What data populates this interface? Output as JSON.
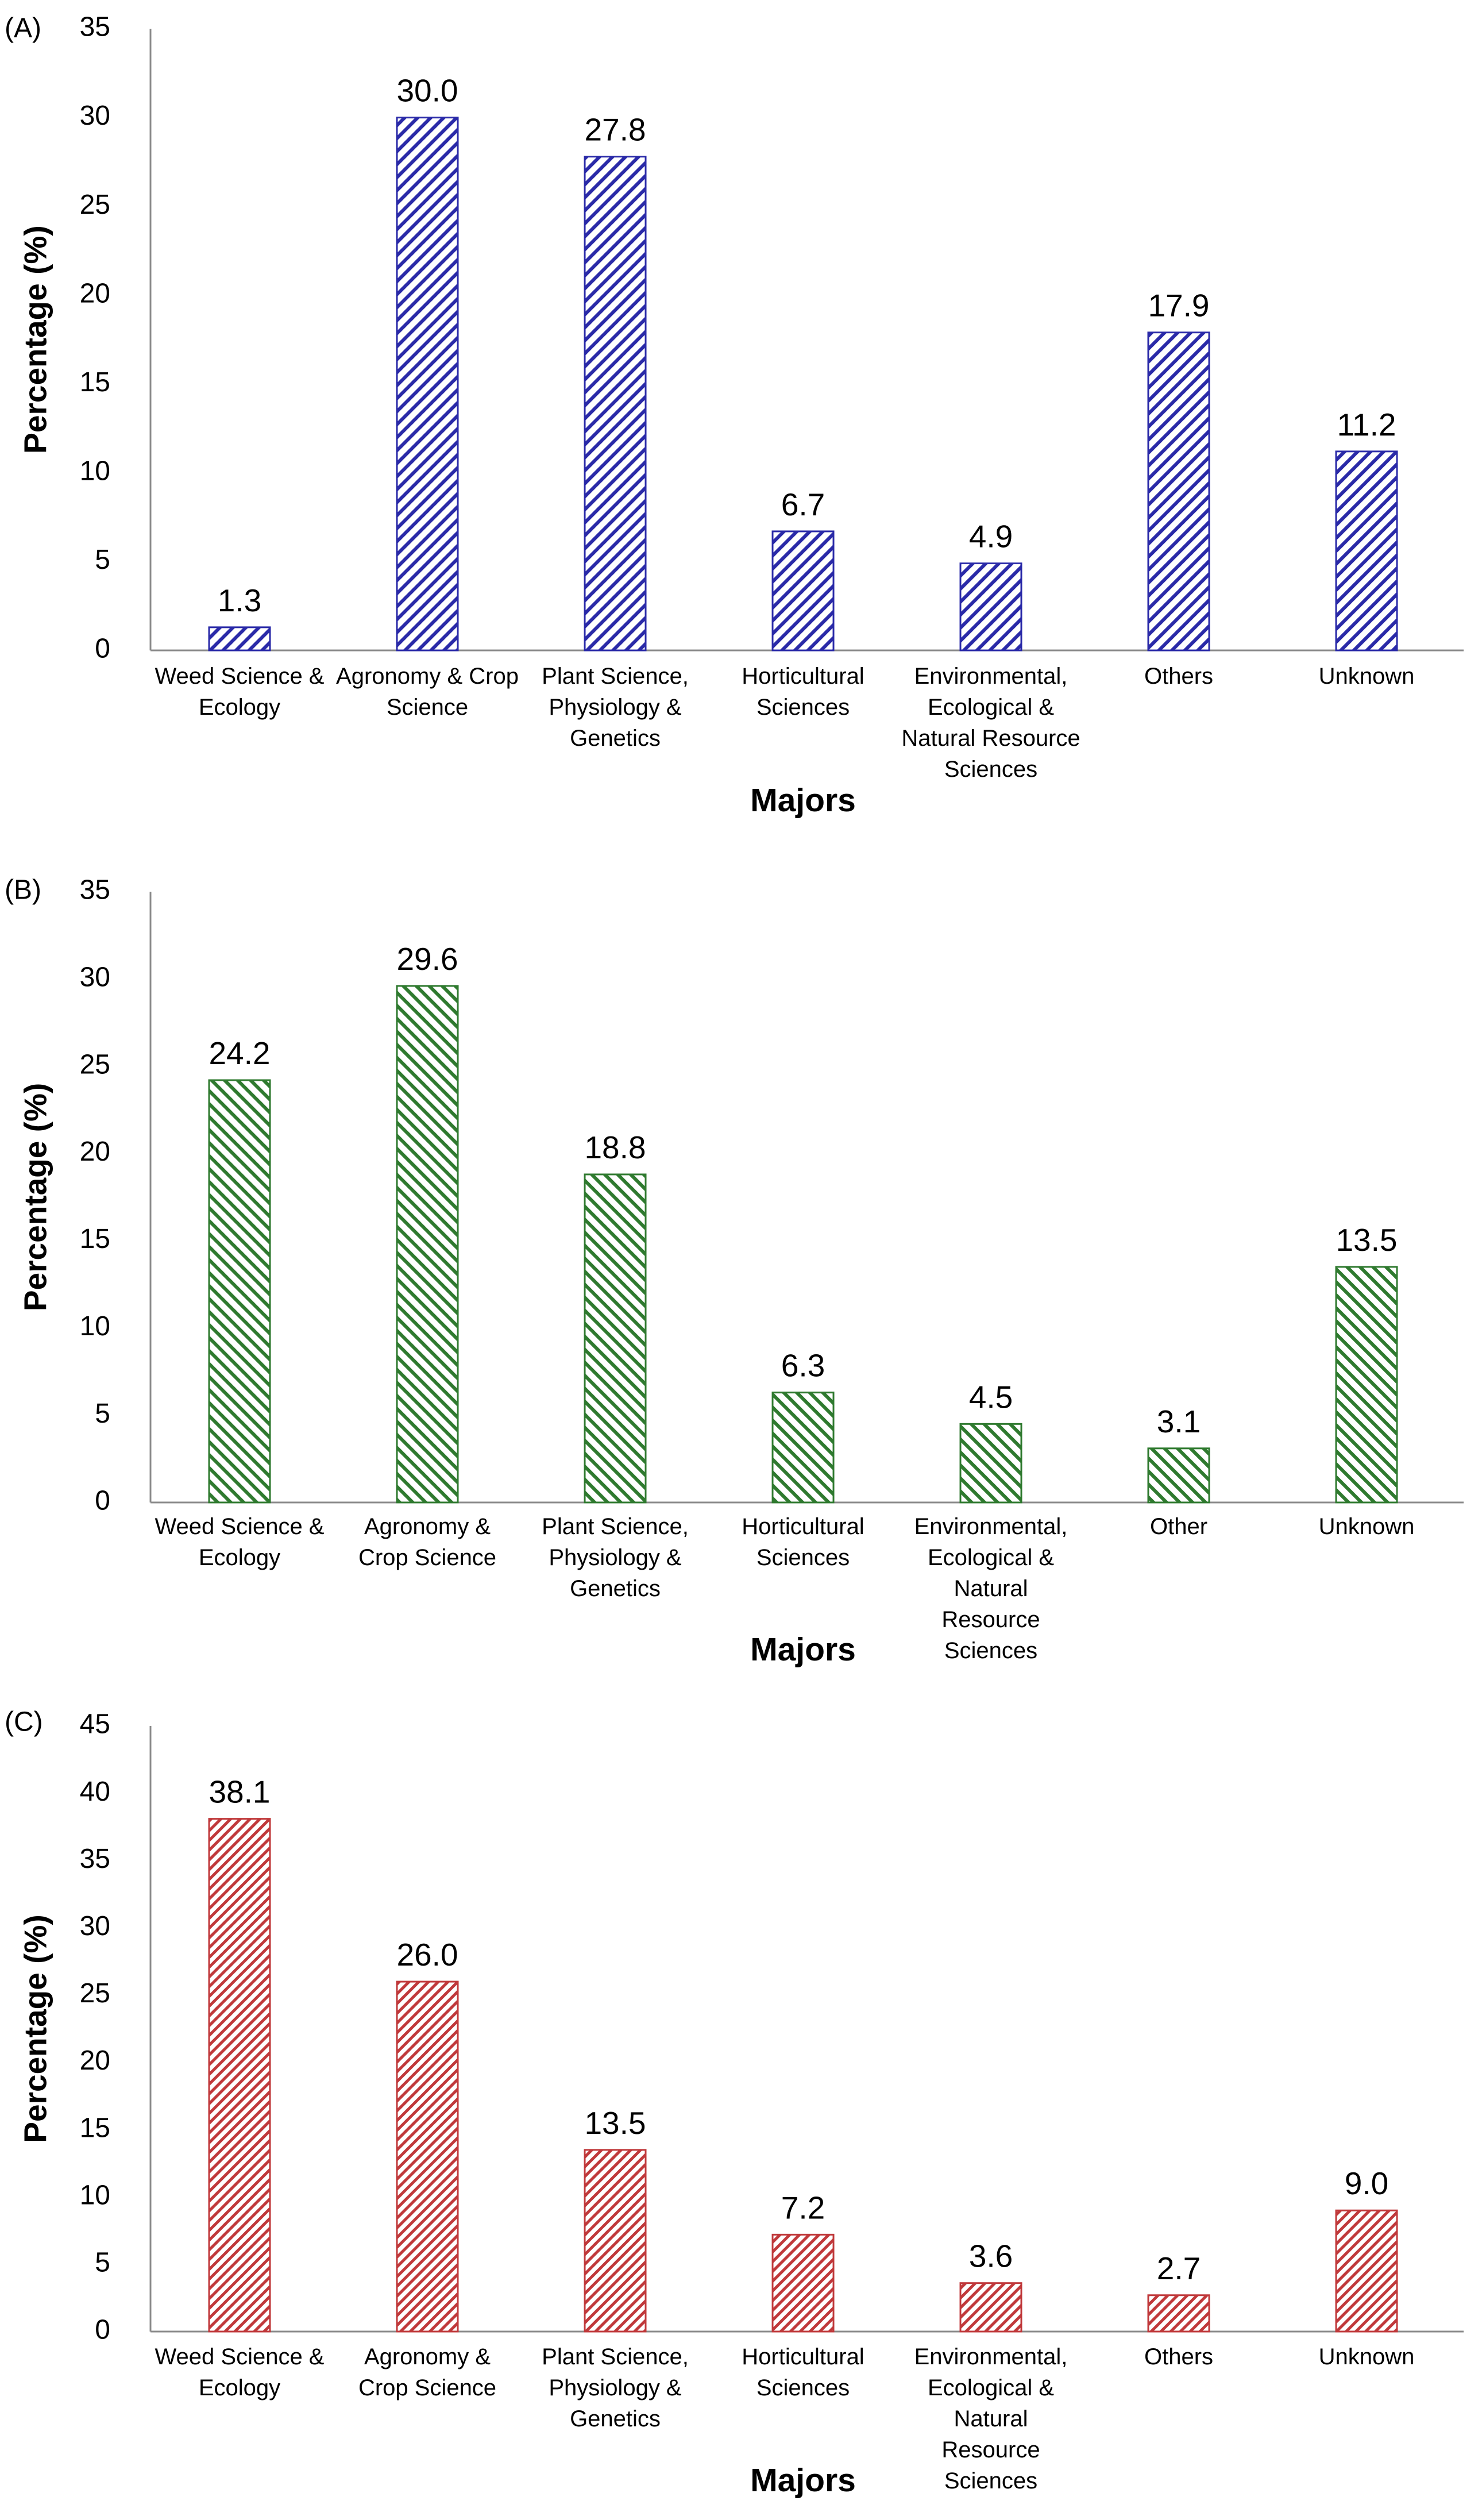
{
  "chart_data": [
    {
      "type": "bar",
      "panel_label": "(A)",
      "categories": [
        [
          "Weed Science &",
          "Ecology"
        ],
        [
          "Agronomy & Crop",
          "Science"
        ],
        [
          "Plant Science,",
          "Physiology &",
          "Genetics"
        ],
        [
          "Horticultural",
          "Sciences"
        ],
        [
          "Environmental,",
          "Ecological &",
          "Natural Resource",
          "Sciences"
        ],
        [
          "Others"
        ],
        [
          "Unknown"
        ]
      ],
      "values": [
        1.3,
        30.0,
        27.8,
        6.7,
        4.9,
        17.9,
        11.2
      ],
      "data_labels": [
        "1.3",
        "30.0",
        "27.8",
        "6.7",
        "4.9",
        "17.9",
        "11.2"
      ],
      "xlabel": "Majors",
      "ylabel": "Percentage (%)",
      "ylim": [
        0,
        35
      ],
      "yticks": [
        0,
        5,
        10,
        15,
        20,
        25,
        30,
        35
      ],
      "grid": false,
      "legend": "none",
      "color": "#2a2aa8",
      "hatch": "diagonal-forward"
    },
    {
      "type": "bar",
      "panel_label": "(B)",
      "categories": [
        [
          "Weed Science &",
          "Ecology"
        ],
        [
          "Agronomy &",
          "Crop Science"
        ],
        [
          "Plant Science,",
          "Physiology &",
          "Genetics"
        ],
        [
          "Horticultural",
          "Sciences"
        ],
        [
          "Environmental,",
          "Ecological &",
          "Natural",
          "Resource",
          "Sciences"
        ],
        [
          "Other"
        ],
        [
          "Unknown"
        ]
      ],
      "values": [
        24.2,
        29.6,
        18.8,
        6.3,
        4.5,
        3.1,
        13.5
      ],
      "data_labels": [
        "24.2",
        "29.6",
        "18.8",
        "6.3",
        "4.5",
        "3.1",
        "13.5"
      ],
      "xlabel": "Majors",
      "ylabel": "Percentage (%)",
      "ylim": [
        0,
        35
      ],
      "yticks": [
        0,
        5,
        10,
        15,
        20,
        25,
        30,
        35
      ],
      "grid": false,
      "legend": "none",
      "color": "#2f7a2f",
      "hatch": "diagonal-backward"
    },
    {
      "type": "bar",
      "panel_label": "(C)",
      "categories": [
        [
          "Weed Science &",
          "Ecology"
        ],
        [
          "Agronomy &",
          "Crop Science"
        ],
        [
          "Plant Science,",
          "Physiology &",
          "Genetics"
        ],
        [
          "Horticultural",
          "Sciences"
        ],
        [
          "Environmental,",
          "Ecological &",
          "Natural",
          "Resource",
          "Sciences"
        ],
        [
          "Others"
        ],
        [
          "Unknown"
        ]
      ],
      "values": [
        38.1,
        26.0,
        13.5,
        7.2,
        3.6,
        2.7,
        9.0
      ],
      "data_labels": [
        "38.1",
        "26.0",
        "13.5",
        "7.2",
        "3.6",
        "2.7",
        "9.0"
      ],
      "xlabel": "Majors",
      "ylabel": "Percentage (%)",
      "ylim": [
        0,
        45
      ],
      "yticks": [
        0,
        5,
        10,
        15,
        20,
        25,
        30,
        35,
        40,
        45
      ],
      "grid": false,
      "legend": "none",
      "color": "#c0393b",
      "hatch": "diagonal-forward"
    }
  ]
}
